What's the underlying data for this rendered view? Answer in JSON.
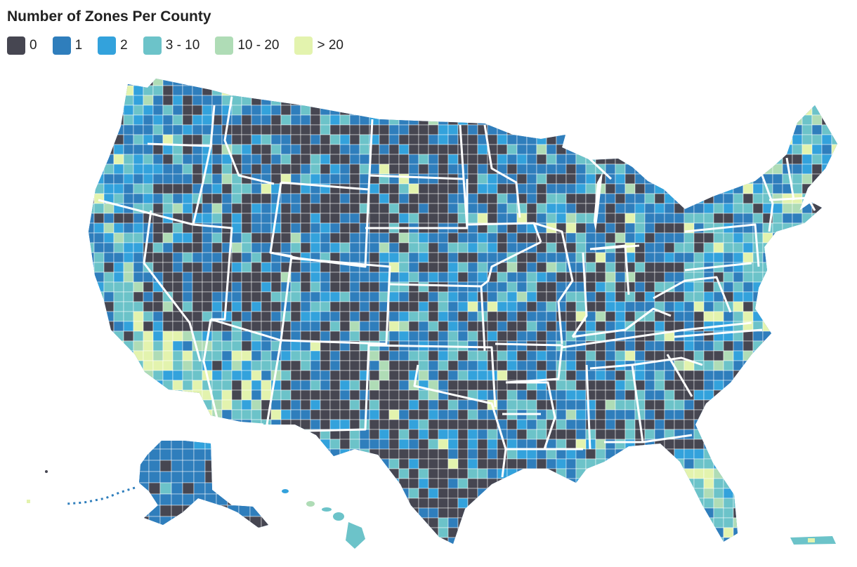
{
  "title": "Number of Zones Per County",
  "legend": [
    {
      "label": "0",
      "color": "#464651"
    },
    {
      "label": "1",
      "color": "#2f7ebc"
    },
    {
      "label": "2",
      "color": "#33a2dc"
    },
    {
      "label": "3 - 10",
      "color": "#6cc3c9"
    },
    {
      "label": "10 - 20",
      "color": "#afdcb6"
    },
    {
      "label": "> 20",
      "color": "#e3f3ae"
    }
  ],
  "colors": {
    "state_border": "#ffffff",
    "county_border": "#ffffff"
  }
}
